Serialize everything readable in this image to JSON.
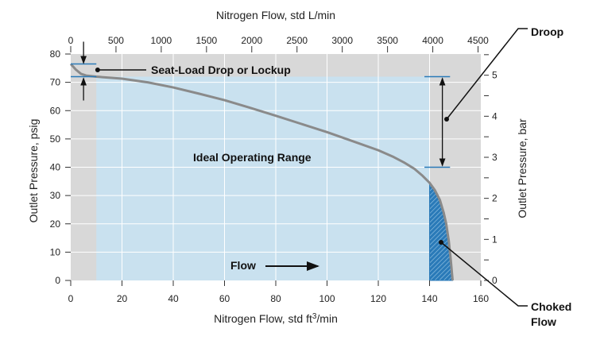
{
  "chart_data": {
    "type": "line",
    "xlabel": "Nitrogen Flow, std ft3/min",
    "xlabel_base": "Nitrogen Flow, std ft",
    "xlabel_sup": "3",
    "xlabel_tail": "/min",
    "x2label": "Nitrogen Flow, std L/min",
    "ylabel": "Outlet Pressure, psig",
    "y2label": "Outlet Pressure, bar",
    "xlim": [
      0,
      160
    ],
    "ylim": [
      0,
      80
    ],
    "x2lim": [
      0,
      4530.7
    ],
    "y2lim": [
      0,
      5.516
    ],
    "x_ticks": [
      0,
      20,
      40,
      60,
      80,
      100,
      120,
      140,
      160
    ],
    "y_ticks": [
      0,
      10,
      20,
      30,
      40,
      50,
      60,
      70,
      80
    ],
    "x2_ticks": [
      0,
      500,
      1000,
      1500,
      2000,
      2500,
      3000,
      3500,
      4000,
      4500
    ],
    "y2_ticks": [
      0,
      1,
      2,
      3,
      4,
      5
    ],
    "grid": true,
    "series": [
      {
        "x": [
          0,
          2,
          4,
          6,
          10,
          20,
          30,
          40,
          50,
          60,
          70,
          80,
          90,
          100,
          110,
          120,
          126,
          130,
          134,
          137,
          140,
          142,
          144,
          145.5,
          146.5,
          147.5,
          148.2,
          149
        ],
        "y": [
          76.5,
          74.5,
          73,
          72.4,
          72,
          71.3,
          70,
          68.2,
          66,
          63.7,
          61,
          58.2,
          55.3,
          52.4,
          49.2,
          46,
          43.6,
          41.7,
          39.5,
          37.2,
          34.5,
          32,
          28.5,
          24,
          20,
          14,
          8,
          0
        ]
      }
    ],
    "regions": {
      "ideal_operating_range": {
        "label": "Ideal Operating Range",
        "x": [
          10,
          140
        ],
        "y": [
          0,
          72
        ]
      },
      "choked_flow": {
        "label": [
          "Choked",
          "Flow"
        ],
        "x_start": 140
      }
    },
    "annotations": {
      "seat_load": {
        "label": "Seat-Load Drop or Lockup",
        "x": 5,
        "y_top": 76.5,
        "y_bottom": 72
      },
      "droop": {
        "label": "Droop",
        "x": 145,
        "y_top": 72,
        "y_bottom": 40
      },
      "flow_arrow": {
        "label": "Flow"
      }
    },
    "colors": {
      "background": "#d8d8d8",
      "ideal": "#c9e1ef",
      "curve": "#8a8a8a",
      "accent": "#2a7ab8",
      "grid": "#ffffff"
    }
  }
}
